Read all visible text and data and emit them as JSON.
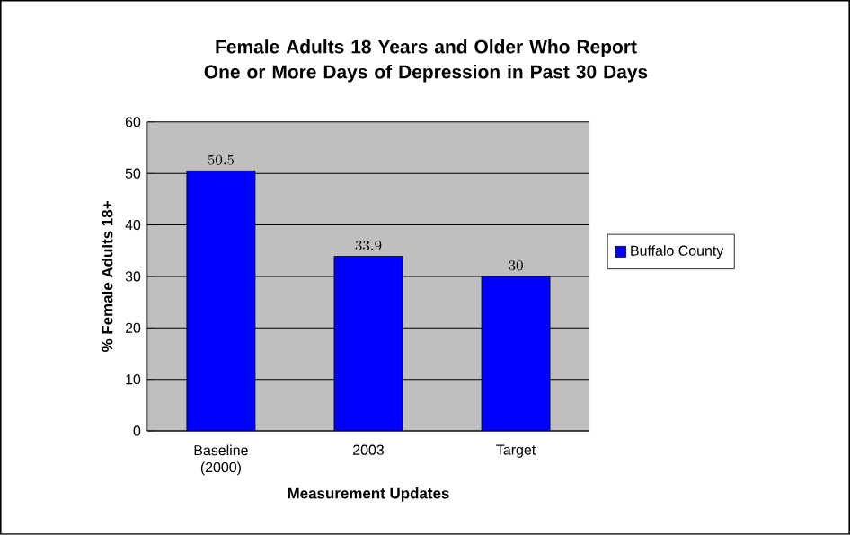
{
  "chart_data": {
    "type": "bar",
    "title": "Female Adults 18 Years and Older Who Report One or More Days of Depression in Past 30 Days",
    "xlabel": "Measurement Updates",
    "ylabel": "% Female Adults 18+",
    "categories": [
      "Baseline (2000)",
      "2003",
      "Target"
    ],
    "series": [
      {
        "name": "Buffalo County",
        "color": "#0000ff",
        "values": [
          50.5,
          33.9,
          30
        ]
      }
    ],
    "ylim": [
      0,
      60
    ],
    "yticks": [
      0,
      10,
      20,
      30,
      40,
      50,
      60
    ],
    "grid": "y",
    "legend": "right",
    "data_labels": true
  }
}
